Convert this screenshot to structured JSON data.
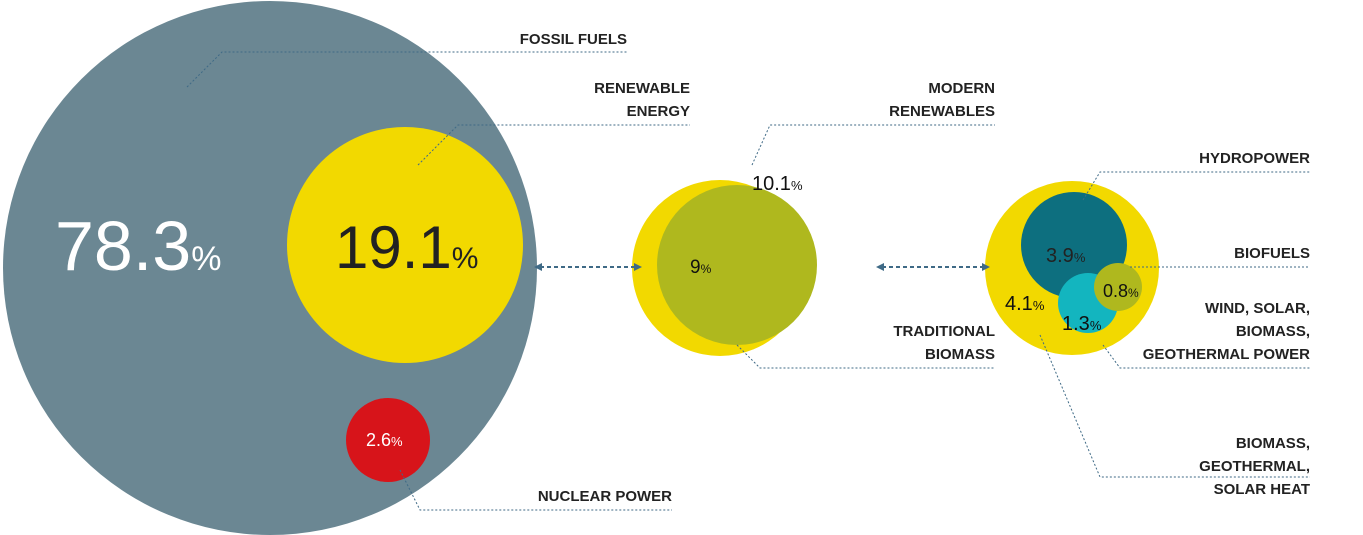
{
  "unit": "%",
  "items": [
    {
      "label": [
        "FOSSIL FUELS"
      ],
      "value": 78.3
    },
    {
      "label": [
        "RENEWABLE",
        "ENERGY"
      ],
      "value": 19.1
    },
    {
      "label": [
        "NUCLEAR POWER"
      ],
      "value": 2.6
    },
    {
      "label": [
        "MODERN",
        "RENEWABLES"
      ],
      "value": 10.1
    },
    {
      "label": [
        "TRADITIONAL",
        "BIOMASS"
      ],
      "value": 9
    },
    {
      "label": [
        "HYDROPOWER"
      ],
      "value": 3.9
    },
    {
      "label": [
        "BIOFUELS"
      ],
      "value": 0.8
    },
    {
      "label": [
        "WIND, SOLAR,",
        "BIOMASS,",
        "GEOTHERMAL POWER"
      ],
      "value": 1.3
    },
    {
      "label": [
        "BIOMASS,",
        "GEOTHERMAL,",
        "SOLAR HEAT"
      ],
      "value": 4.1
    }
  ]
}
